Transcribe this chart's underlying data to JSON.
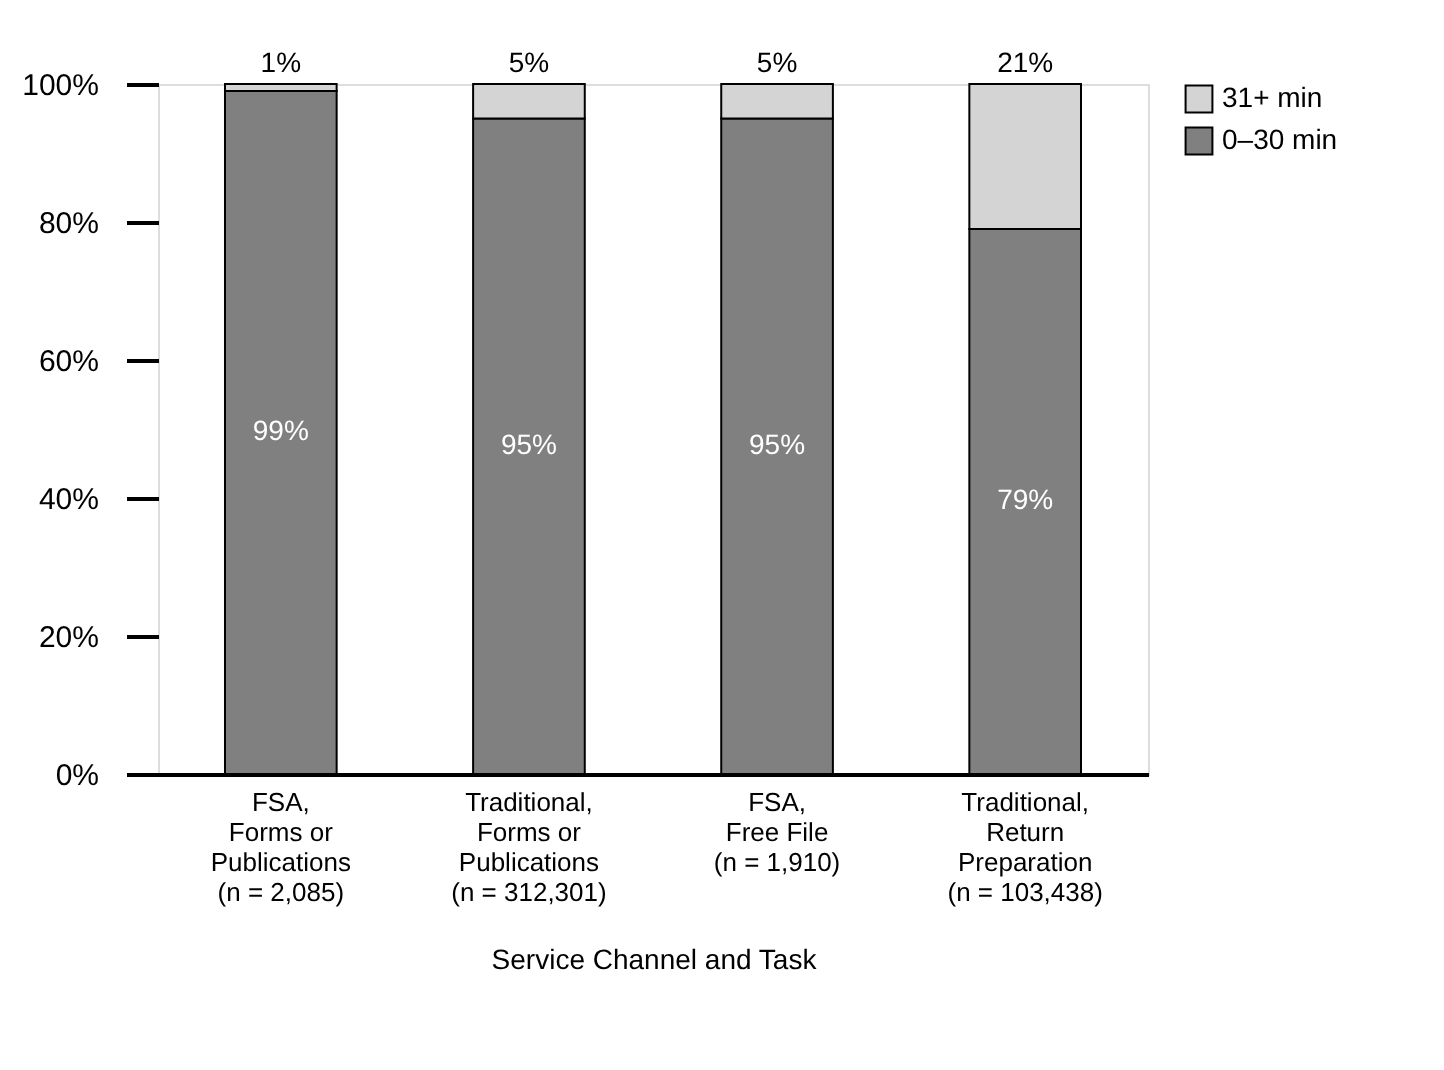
{
  "chart_data": {
    "type": "bar",
    "stacked": true,
    "xlabel": "Service Channel and Task",
    "categories": [
      "FSA,\nForms or\nPublications\n(n = 2,085)",
      "Traditional,\nForms or\nPublications\n(n = 312,301)",
      "FSA,\nFree File\n(n = 1,910)",
      "Traditional,\nReturn\nPreparation\n(n = 103,438)"
    ],
    "series": [
      {
        "name": "0–30 min",
        "color": "#808080",
        "values": [
          99,
          95,
          95,
          79
        ],
        "value_labels": [
          "99%",
          "95%",
          "95%",
          "79%"
        ]
      },
      {
        "name": "31+ min",
        "color": "#d4d4d4",
        "values": [
          1,
          5,
          5,
          21
        ],
        "value_labels": [
          "1%",
          "5%",
          "5%",
          "21%"
        ]
      }
    ],
    "ylim": [
      0,
      100
    ],
    "yticks": [
      {
        "value": 0,
        "label": "0%"
      },
      {
        "value": 20,
        "label": "20%"
      },
      {
        "value": 40,
        "label": "40%"
      },
      {
        "value": 60,
        "label": "60%"
      },
      {
        "value": 80,
        "label": "80%"
      },
      {
        "value": 100,
        "label": "100%"
      }
    ],
    "grid": false,
    "legend": "right"
  }
}
